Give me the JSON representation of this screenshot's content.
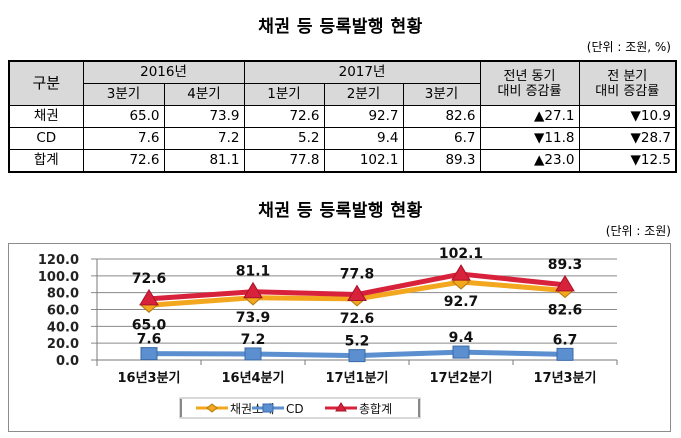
{
  "table_section": {
    "title": "채권 등 등록발행 현황",
    "unit": "(단위 : 조원, %)",
    "header": {
      "category": "구분",
      "year_2016": "2016년",
      "year_2017": "2017년",
      "yoy_line1": "전년 동기",
      "yoy_line2": "대비 증감률",
      "qoq_line1": "전 분기",
      "qoq_line2": "대비 증감률",
      "quarters": [
        "3분기",
        "4분기",
        "1분기",
        "2분기",
        "3분기"
      ]
    },
    "rows": [
      {
        "label": "채권",
        "values": [
          "65.0",
          "73.9",
          "72.6",
          "92.7",
          "82.6"
        ],
        "yoy": "▲27.1",
        "qoq": "▼10.9"
      },
      {
        "label": "CD",
        "values": [
          "7.6",
          "7.2",
          "5.2",
          "9.4",
          "6.7"
        ],
        "yoy": "▼11.8",
        "qoq": "▼28.7"
      },
      {
        "label": "합계",
        "values": [
          "72.6",
          "81.1",
          "77.8",
          "102.1",
          "89.3"
        ],
        "yoy": "▲23.0",
        "qoq": "▼12.5"
      }
    ]
  },
  "chart_section": {
    "title": "채권 등 등록발행 현황",
    "unit": "(단위 : 조원)"
  },
  "chart_data": {
    "type": "line",
    "title": "채권 등 등록발행 현황",
    "xlabel": "",
    "ylabel": "",
    "categories": [
      "16년3분기",
      "16년4분기",
      "17년1분기",
      "17년2분기",
      "17년3분기"
    ],
    "ylim": [
      0,
      120
    ],
    "yticks": [
      "0.0",
      "20.0",
      "40.0",
      "60.0",
      "80.0",
      "100.0",
      "120.0"
    ],
    "grid": true,
    "legend_position": "bottom",
    "series": [
      {
        "name": "채권소계",
        "values": [
          65.0,
          73.9,
          72.6,
          92.7,
          82.6
        ],
        "labels": [
          "65.0",
          "73.9",
          "72.6",
          "92.7",
          "82.6"
        ],
        "color": "#f2a71e",
        "marker": "diamond"
      },
      {
        "name": "CD",
        "values": [
          7.6,
          7.2,
          5.2,
          9.4,
          6.7
        ],
        "labels": [
          "7.6",
          "7.2",
          "5.2",
          "9.4",
          "6.7"
        ],
        "color": "#5b8fcf",
        "marker": "square"
      },
      {
        "name": "총합계",
        "values": [
          72.6,
          81.1,
          77.8,
          102.1,
          89.3
        ],
        "labels": [
          "72.6",
          "81.1",
          "77.8",
          "102.1",
          "89.3"
        ],
        "color": "#d8213b",
        "marker": "triangle"
      }
    ]
  }
}
